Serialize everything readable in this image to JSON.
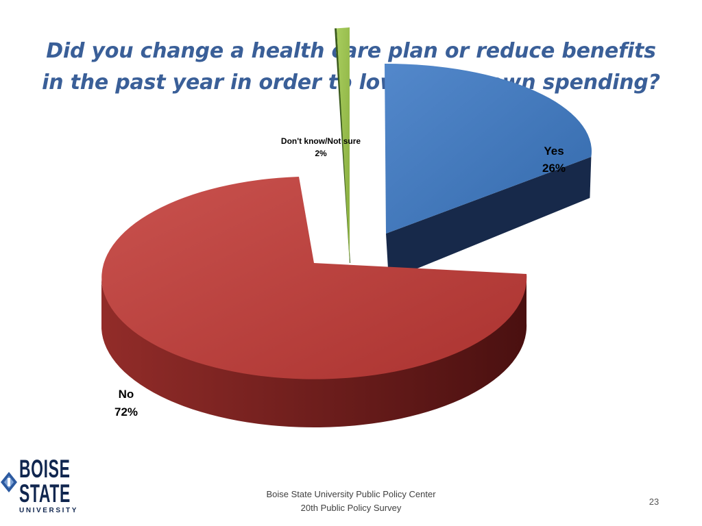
{
  "slide": {
    "title_line1": "Did you change a health care plan or reduce benefits",
    "title_line2": "in the past year in order to lower your own spending?",
    "footer_line1": "Boise State University  Public Policy Center",
    "footer_line2": "20th Public Policy Survey",
    "slide_number": "23"
  },
  "logo": {
    "line1": "BOISE",
    "line2": "STATE",
    "line3": "UNIVERSITY"
  },
  "chart_data": {
    "type": "pie",
    "style": "3d-exploded",
    "slices": [
      {
        "label": "Yes",
        "value": 26,
        "value_label": "26%",
        "color": "#3b78c4",
        "side_color": "#17294a"
      },
      {
        "label": "No",
        "value": 72,
        "value_label": "72%",
        "color": "#c23a36",
        "side_color": "#4a1010"
      },
      {
        "label": "Don't know/Not sure",
        "value": 2,
        "value_label": "2%",
        "color": "#9cc648",
        "side_color": "#3a5a1c"
      }
    ],
    "legend": "none"
  }
}
